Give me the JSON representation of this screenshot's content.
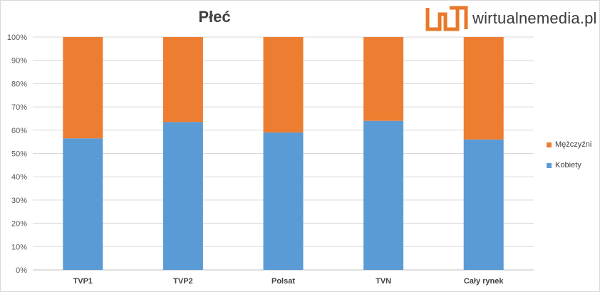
{
  "chart_data": {
    "type": "bar",
    "stacked": true,
    "title": "Płeć",
    "categories": [
      "TVP1",
      "TVP2",
      "Polsat",
      "TVN",
      "Cały rynek"
    ],
    "series": [
      {
        "name": "Kobiety",
        "color": "#5b9bd5",
        "values": [
          56.5,
          63.5,
          59.0,
          64.0,
          56.0
        ]
      },
      {
        "name": "Mężczyźni",
        "color": "#ed7d31",
        "values": [
          43.5,
          36.5,
          41.0,
          36.0,
          44.0
        ]
      }
    ],
    "ylim": [
      0,
      100
    ],
    "yticks": [
      "0%",
      "10%",
      "20%",
      "30%",
      "40%",
      "50%",
      "60%",
      "70%",
      "80%",
      "90%",
      "100%"
    ],
    "grid": true,
    "legend_position": "right"
  },
  "logo": {
    "text": "wirtualnemedia.pl",
    "color": "#e8782a"
  }
}
